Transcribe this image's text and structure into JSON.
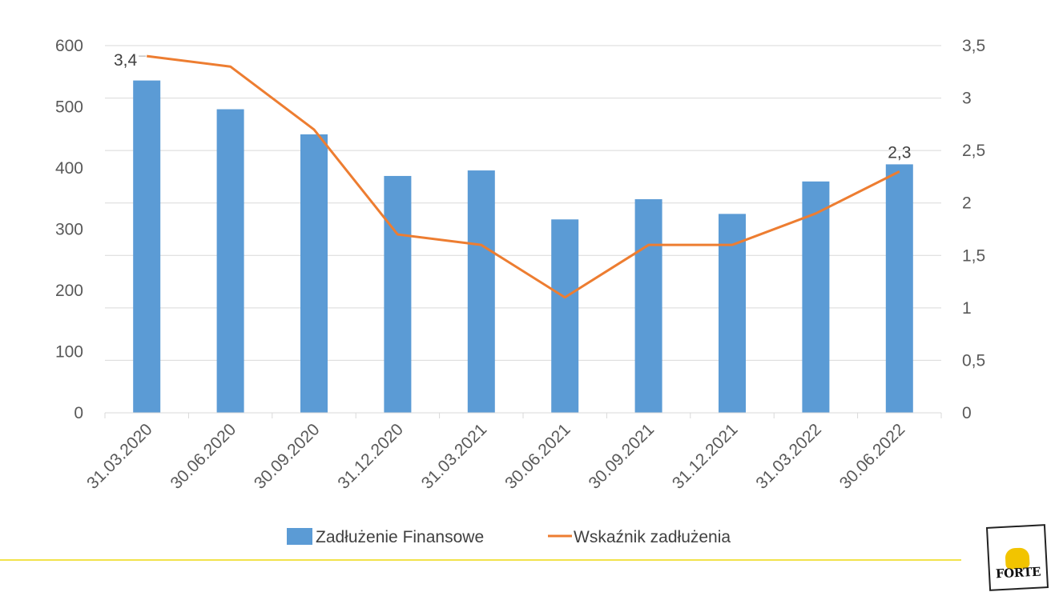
{
  "chart_data": {
    "type": "bar+line",
    "categories": [
      "31.03.2020",
      "30.06.2020",
      "30.09.2020",
      "31.12.2020",
      "31.03.2021",
      "30.06.2021",
      "30.09.2021",
      "31.12.2021",
      "31.03.2022",
      "30.06.2022"
    ],
    "series": [
      {
        "name": "Zadłużenie Finansowe",
        "type": "bar",
        "axis": "left",
        "values": [
          543,
          496,
          455,
          387,
          396,
          316,
          349,
          325,
          378,
          406
        ],
        "color": "#5b9bd5"
      },
      {
        "name": "Wskaźnik zadłużenia",
        "type": "line",
        "axis": "right",
        "values": [
          3.4,
          3.3,
          2.7,
          1.7,
          1.6,
          1.1,
          1.6,
          1.6,
          1.9,
          2.3
        ],
        "color": "#ed7d31"
      }
    ],
    "data_labels": [
      {
        "series": 1,
        "index": 0,
        "text": "3,4"
      },
      {
        "series": 1,
        "index": 9,
        "text": "2,3"
      }
    ],
    "y_left": {
      "min": 0,
      "max": 600,
      "ticks": [
        0,
        100,
        200,
        300,
        400,
        500,
        600
      ],
      "tick_labels": [
        "0",
        "100",
        "200",
        "300",
        "400",
        "500",
        "600"
      ]
    },
    "y_right": {
      "min": 0,
      "max": 3.5,
      "ticks": [
        0,
        0.5,
        1,
        1.5,
        2,
        2.5,
        3,
        3.5
      ],
      "tick_labels": [
        "0",
        "0,5",
        "1",
        "1,5",
        "2",
        "2,5",
        "3",
        "3,5"
      ]
    },
    "grid": true,
    "legend": "bottom"
  },
  "logo": {
    "text": "FORTE"
  },
  "colors": {
    "footer_line": "#f2e34a",
    "grid": "#d9d9d9",
    "axis_text": "#595959"
  }
}
